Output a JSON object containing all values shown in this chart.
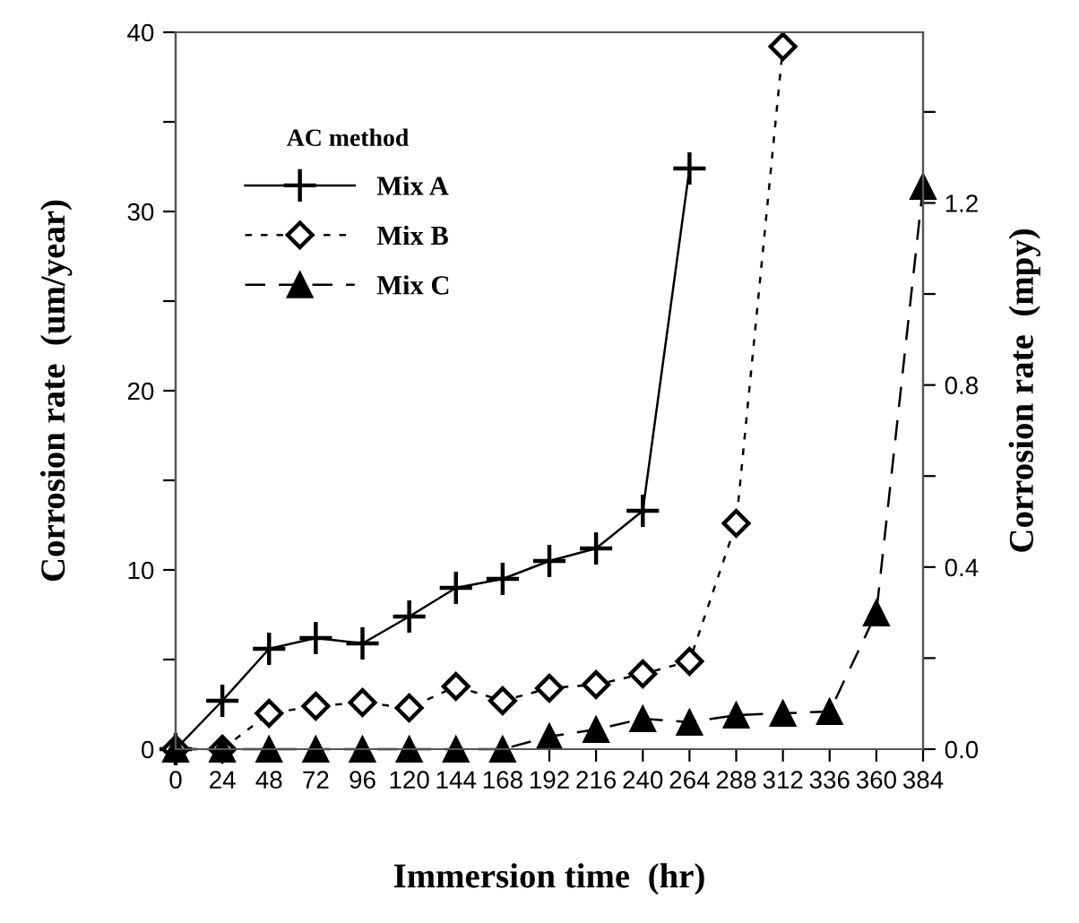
{
  "chart_data": {
    "type": "line",
    "xlabel": "Immersion time  (hr)",
    "ylabel": "Corrosion rate  (um/year)",
    "y2label": "Corrosion rate  (mpy)",
    "legend_title": "AC method",
    "xlim": [
      0,
      384
    ],
    "xticks": [
      0,
      24,
      48,
      72,
      96,
      120,
      144,
      168,
      192,
      216,
      240,
      264,
      288,
      312,
      336,
      360,
      384
    ],
    "ylim": [
      0,
      40
    ],
    "yticks": [
      0,
      {
        "value": 5,
        "label": null
      },
      10,
      {
        "value": 15,
        "label": null
      },
      20,
      {
        "value": 25,
        "label": null
      },
      30,
      {
        "value": 35,
        "label": null
      },
      40
    ],
    "y2lim": [
      0,
      1.575
    ],
    "y2ticks": [
      {
        "value": 0,
        "label": "0.0"
      },
      {
        "value": 0.2,
        "label": null
      },
      0.4,
      {
        "value": 0.6,
        "label": null
      },
      0.8,
      {
        "value": 1.0,
        "label": null
      },
      1.2,
      {
        "value": 1.4,
        "label": null
      }
    ],
    "grid": false,
    "legend": "top left",
    "series": [
      {
        "name": "Mix A",
        "color": "#000000",
        "marker": "cross",
        "line_style": "solid",
        "x": [
          0,
          24,
          48,
          72,
          96,
          120,
          144,
          168,
          192,
          216,
          240,
          264
        ],
        "values": [
          0,
          2.7,
          5.6,
          6.2,
          5.9,
          7.4,
          9.0,
          9.5,
          10.5,
          11.2,
          13.3,
          32.4
        ]
      },
      {
        "name": "Mix B",
        "color": "#000000",
        "marker": "diamond",
        "line_style": "dotted",
        "x": [
          0,
          24,
          48,
          72,
          96,
          120,
          144,
          168,
          192,
          216,
          240,
          264,
          288,
          312
        ],
        "values": [
          0,
          0,
          2.0,
          2.4,
          2.6,
          2.3,
          3.5,
          2.7,
          3.4,
          3.6,
          4.2,
          4.9,
          12.6,
          39.2
        ]
      },
      {
        "name": "Mix C",
        "color": "#000000",
        "marker": "triangle",
        "line_style": "dashed",
        "x": [
          0,
          24,
          48,
          72,
          96,
          120,
          144,
          168,
          192,
          216,
          240,
          264,
          288,
          312,
          336,
          360,
          384
        ],
        "values": [
          0,
          0,
          0,
          0,
          0,
          0,
          0,
          0,
          0.7,
          1.1,
          1.7,
          1.5,
          1.9,
          2.0,
          2.1,
          7.6,
          31.4
        ]
      }
    ]
  }
}
